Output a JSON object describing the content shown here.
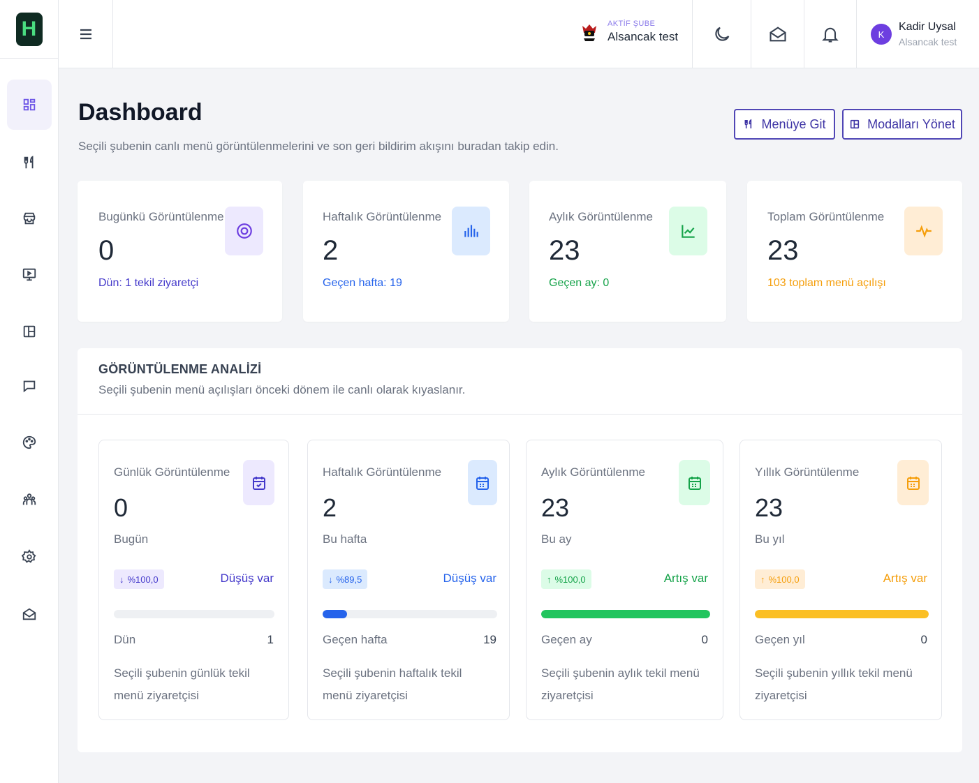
{
  "sidebar": {
    "logo_letter": "H",
    "items": [
      "dashboard-icon",
      "utensils-icon",
      "store-icon",
      "monitor-play-icon",
      "layout-panel-icon",
      "message-icon",
      "palette-icon",
      "users-icon",
      "settings-icon",
      "mail-open-icon"
    ]
  },
  "topbar": {
    "branch_tag": "AKTİF ŞUBE",
    "branch_name": "Alsancak test",
    "user_initial": "K",
    "user_name": "Kadir Uysal",
    "user_branch": "Alsancak test"
  },
  "header": {
    "title": "Dashboard",
    "subtitle": "Seçili şubenin canlı menü görüntülenmelerini ve son geri bildirim akışını buradan takip edin.",
    "menu_button": "Menüye Git",
    "modals_button": "Modalları Yönet"
  },
  "stats": [
    {
      "label": "Bugünkü Görüntülenme",
      "value": "0",
      "note": "Dün: 1 tekil ziyaretçi",
      "color": "#4338ca",
      "icon": "target-icon",
      "icon_bg": "#ede9fe",
      "icon_color": "#6d3ee0"
    },
    {
      "label": "Haftalık Görüntülenme",
      "value": "2",
      "note": "Geçen hafta: 19",
      "color": "#2563eb",
      "icon": "bar-chart-icon",
      "icon_bg": "#dbeafe",
      "icon_color": "#2563eb"
    },
    {
      "label": "Aylık Görüntülenme",
      "value": "23",
      "note": "Geçen ay: 0",
      "color": "#16a34a",
      "icon": "line-chart-icon",
      "icon_bg": "#dcfce7",
      "icon_color": "#16a34a"
    },
    {
      "label": "Toplam Görüntülenme",
      "value": "23",
      "note": "103 toplam menü açılışı",
      "color": "#f59e0b",
      "icon": "activity-icon",
      "icon_bg": "#ffedd5",
      "icon_color": "#f59e0b"
    }
  ],
  "analysis": {
    "title": "GÖRÜNTÜLENME ANALİZİ",
    "subtitle": "Seçili şubenin menü açılışları önceki dönem ile canlı olarak kıyaslanır.",
    "cards": [
      {
        "label": "Günlük Görüntülenme",
        "value": "0",
        "period": "Bugün",
        "change": "%100,0",
        "direction": "down",
        "trend": "Düşüş var",
        "progress": 0,
        "prev_label": "Dün",
        "prev_value": "1",
        "desc": "Seçili şubenin günlük tekil menü ziyaretçisi",
        "color": "#4338ca",
        "chip_bg": "#ede9fe",
        "icon_bg": "#ede9fe",
        "bar": "#6d3ee0"
      },
      {
        "label": "Haftalık Görüntülenme",
        "value": "2",
        "period": "Bu hafta",
        "change": "%89,5",
        "direction": "down",
        "trend": "Düşüş var",
        "progress": 0.14,
        "prev_label": "Geçen hafta",
        "prev_value": "19",
        "desc": "Seçili şubenin haftalık tekil menü ziyaretçisi",
        "color": "#2563eb",
        "chip_bg": "#dbeafe",
        "icon_bg": "#dbeafe",
        "bar": "#2563eb"
      },
      {
        "label": "Aylık Görüntülenme",
        "value": "23",
        "period": "Bu ay",
        "change": "%100,0",
        "direction": "up",
        "trend": "Artış var",
        "progress": 1,
        "prev_label": "Geçen ay",
        "prev_value": "0",
        "desc": "Seçili şubenin aylık tekil menü ziyaretçisi",
        "color": "#16a34a",
        "chip_bg": "#dcfce7",
        "icon_bg": "#dcfce7",
        "bar": "#22c55e"
      },
      {
        "label": "Yıllık Görüntülenme",
        "value": "23",
        "period": "Bu yıl",
        "change": "%100,0",
        "direction": "up",
        "trend": "Artış var",
        "progress": 1,
        "prev_label": "Geçen yıl",
        "prev_value": "0",
        "desc": "Seçili şubenin yıllık tekil menü ziyaretçisi",
        "color": "#f59e0b",
        "chip_bg": "#ffedd5",
        "icon_bg": "#ffedd5",
        "bar": "#fbbf24"
      }
    ]
  }
}
